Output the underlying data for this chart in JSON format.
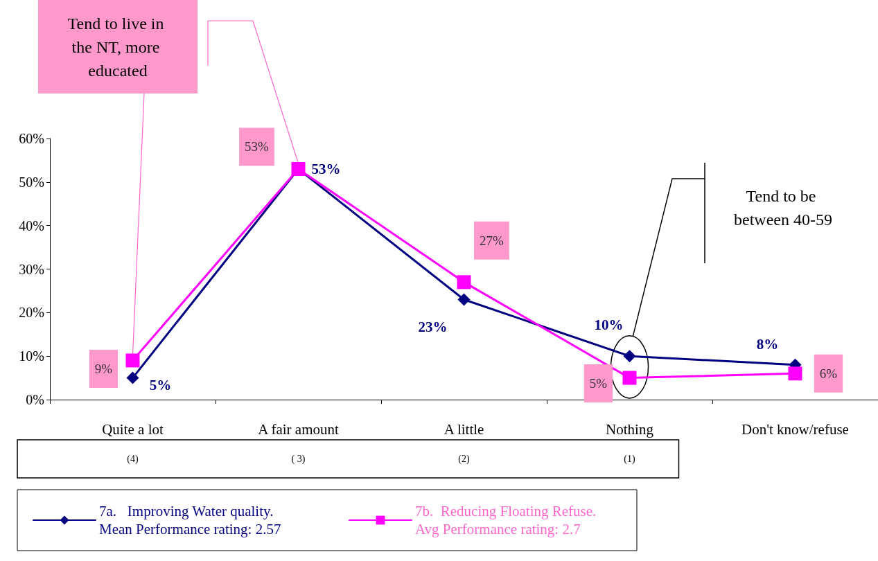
{
  "chart_data": {
    "type": "line",
    "categories": [
      "Quite a lot",
      "A fair amount",
      "A little",
      "Nothing",
      "Don't know/refuse"
    ],
    "series": [
      {
        "name": "7a.   Improving Water quality. Mean Performance rating: 2.57",
        "color": "#000080",
        "marker": "diamond",
        "values": [
          5,
          53,
          23,
          10,
          8
        ],
        "value_labels": [
          "5%",
          "53%",
          "23%",
          "10%",
          "8%"
        ]
      },
      {
        "name": "7b.  Reducing Floating Refuse. Avg Performance rating: 2.7",
        "color": "#ff00ff",
        "marker": "square",
        "values": [
          9,
          53,
          27,
          5,
          6
        ],
        "value_labels": [
          "9%",
          "53%",
          "27%",
          "5%",
          "6%"
        ]
      }
    ],
    "ylim": [
      0,
      60
    ],
    "yticks": [
      {
        "value": 0,
        "label": "0%"
      },
      {
        "value": 10,
        "label": "10%"
      },
      {
        "value": 20,
        "label": "20%"
      },
      {
        "value": 30,
        "label": "30%"
      },
      {
        "value": 40,
        "label": "40%"
      },
      {
        "value": 50,
        "label": "50%"
      },
      {
        "value": 60,
        "label": "60%"
      }
    ],
    "grid": false,
    "legend": "bottom",
    "line_style": "solid",
    "annotations": [
      "(4)",
      "( 3)",
      "(2)",
      "(1)",
      {
        "text": "Tend to live in the NT, more educated",
        "x": "Quite a lot",
        "y": 9
      },
      "Tend to be between 40-59"
    ]
  }
}
